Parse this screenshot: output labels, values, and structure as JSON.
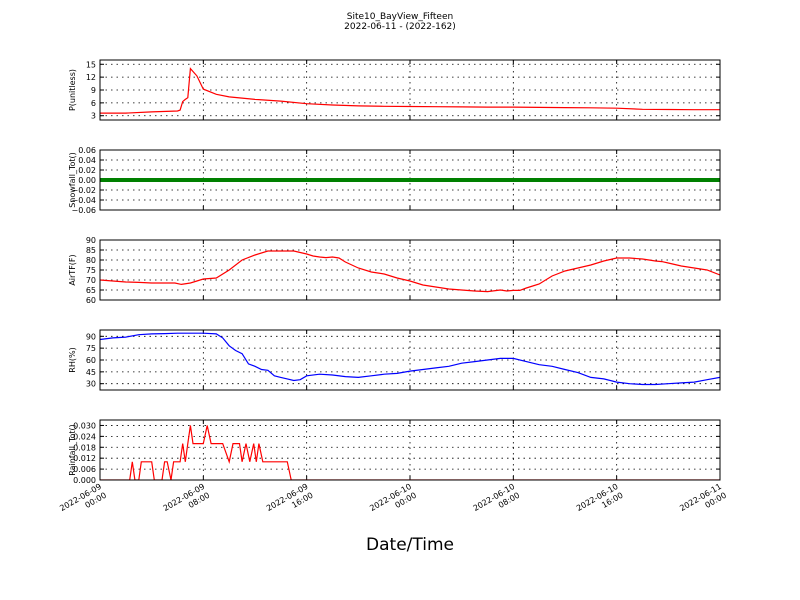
{
  "figure": {
    "title": "Site10_BayView_Fifteen",
    "subtitle": "2022-06-11 - (2022-162)",
    "xlabel": "Date/Time",
    "x_ticks": [
      {
        "line1": "2022-06-09",
        "line2": "00:00"
      },
      {
        "line1": "2022-06-09",
        "line2": "08:00"
      },
      {
        "line1": "2022-06-09",
        "line2": "16:00"
      },
      {
        "line1": "2022-06-10",
        "line2": "00:00"
      },
      {
        "line1": "2022-06-10",
        "line2": "08:00"
      },
      {
        "line1": "2022-06-10",
        "line2": "16:00"
      },
      {
        "line1": "2022-06-11",
        "line2": "00:00"
      }
    ]
  },
  "chart_data": [
    {
      "type": "line",
      "ylabel": "P(unitless)",
      "color": "#ff0000",
      "x_range_hours": [
        0,
        48
      ],
      "ylim": [
        2,
        16
      ],
      "yticks": [
        3,
        6,
        9,
        12,
        15
      ],
      "ytick_labels": [
        "3",
        "6",
        "9",
        "12",
        "15"
      ],
      "grid": true,
      "series": [
        {
          "x": [
            0,
            2,
            4,
            6,
            6.2,
            6.4,
            6.6,
            6.8,
            7,
            7.5,
            8,
            9,
            10,
            12,
            14,
            16,
            18,
            20,
            22,
            24,
            26,
            28,
            30,
            32,
            34,
            36,
            38,
            40,
            42,
            44,
            46,
            48
          ],
          "y": [
            3.6,
            3.6,
            3.9,
            4.1,
            4.3,
            6.3,
            6.8,
            7.2,
            14.0,
            12.3,
            9.2,
            8.0,
            7.4,
            6.8,
            6.4,
            5.8,
            5.5,
            5.3,
            5.2,
            5.15,
            5.1,
            5.05,
            5.0,
            5.0,
            4.95,
            4.9,
            4.85,
            4.75,
            4.5,
            4.45,
            4.4,
            4.4
          ]
        }
      ]
    },
    {
      "type": "line",
      "ylabel": "Snowfall_Tot()",
      "color": "#008000",
      "x_range_hours": [
        0,
        48
      ],
      "ylim": [
        -0.06,
        0.06
      ],
      "yticks": [
        -0.06,
        -0.04,
        -0.02,
        0.0,
        0.02,
        0.04,
        0.06
      ],
      "ytick_labels": [
        "−0.06",
        "−0.04",
        "−0.02",
        "0.00",
        "0.02",
        "0.04",
        "0.06"
      ],
      "grid": true,
      "series": [
        {
          "x": [
            0,
            48
          ],
          "y": [
            0,
            0
          ]
        }
      ]
    },
    {
      "type": "line",
      "ylabel": "AirTF(F)",
      "color": "#ff0000",
      "x_range_hours": [
        0,
        48
      ],
      "ylim": [
        60,
        90
      ],
      "yticks": [
        60,
        65,
        70,
        75,
        80,
        85,
        90
      ],
      "ytick_labels": [
        "60",
        "65",
        "70",
        "75",
        "80",
        "85",
        "90"
      ],
      "grid": true,
      "series": [
        {
          "x": [
            0,
            1,
            2,
            3,
            4,
            5,
            5.8,
            6.3,
            7,
            7.5,
            8,
            9,
            10,
            11,
            12,
            13,
            14,
            15,
            16,
            16.5,
            17,
            17.5,
            18,
            18.5,
            19,
            20,
            21,
            22,
            23,
            24,
            25,
            26,
            27,
            28,
            29,
            30,
            31,
            31.5,
            32,
            32.5,
            33,
            33.5,
            34,
            34.5,
            35,
            36,
            37,
            38,
            39,
            40,
            41,
            42,
            42.5,
            43,
            43.5,
            44,
            45,
            46,
            47,
            48
          ],
          "y": [
            70,
            69.5,
            69,
            68.8,
            68.5,
            68.5,
            68.5,
            67.8,
            68.5,
            69.5,
            70.5,
            71,
            75,
            80,
            82.5,
            84.5,
            84.5,
            84.5,
            83,
            82,
            81.5,
            81.2,
            81.5,
            81,
            79,
            76,
            74,
            73,
            71,
            69.5,
            67.5,
            66.5,
            65.5,
            65,
            64.5,
            64.2,
            65,
            64.5,
            64.8,
            64.8,
            66,
            67,
            68,
            70,
            72,
            74.5,
            76,
            77.5,
            79.5,
            81,
            81,
            80.5,
            80,
            79.5,
            79.2,
            78.5,
            77,
            76,
            75,
            72.5
          ]
        }
      ]
    },
    {
      "type": "line",
      "ylabel": "RH(%)",
      "color": "#0000ff",
      "x_range_hours": [
        0,
        48
      ],
      "ylim": [
        22,
        98
      ],
      "yticks": [
        30,
        45,
        60,
        75,
        90
      ],
      "ytick_labels": [
        "30",
        "45",
        "60",
        "75",
        "90"
      ],
      "grid": true,
      "series": [
        {
          "x": [
            0,
            1,
            2,
            3,
            4,
            5,
            6,
            7,
            8,
            9,
            9.5,
            10,
            10.5,
            11,
            11.5,
            12,
            12.5,
            13,
            13.5,
            14,
            14.5,
            15,
            15.5,
            16,
            17,
            18,
            19,
            20,
            21,
            22,
            23,
            24,
            25,
            26,
            27,
            28,
            29,
            30,
            31,
            32,
            33,
            34,
            35,
            36,
            37,
            38,
            39,
            40,
            41,
            42,
            43,
            44,
            45,
            46,
            47,
            48
          ],
          "y": [
            86,
            88,
            89,
            92,
            93,
            93.5,
            94,
            94,
            94,
            93,
            88,
            78,
            72,
            68,
            55,
            52,
            48,
            47,
            40,
            38,
            36,
            34,
            35,
            40,
            42,
            41,
            39,
            38,
            40,
            42,
            43,
            46,
            48,
            50,
            52,
            56,
            58,
            60,
            62,
            62,
            58,
            54,
            52,
            48,
            44,
            38,
            36,
            32,
            30,
            29,
            29,
            30,
            31,
            32,
            35,
            38
          ]
        }
      ]
    },
    {
      "type": "line",
      "ylabel": "Rainfall_Tot()",
      "color": "#ff0000",
      "x_range_hours": [
        0,
        48
      ],
      "ylim": [
        0.0,
        0.033
      ],
      "yticks": [
        0.0,
        0.006,
        0.012,
        0.018,
        0.024,
        0.03
      ],
      "ytick_labels": [
        "0.000",
        "0.006",
        "0.012",
        "0.018",
        "0.024",
        "0.030"
      ],
      "grid": true,
      "series": [
        {
          "x": [
            0,
            1,
            2.3,
            2.5,
            2.7,
            3.0,
            3.2,
            3.8,
            4.0,
            4.2,
            4.8,
            5.0,
            5.2,
            5.5,
            5.7,
            6.0,
            6.2,
            6.4,
            6.6,
            6.8,
            7.0,
            7.2,
            7.5,
            7.8,
            8.0,
            8.3,
            8.6,
            8.9,
            9.2,
            9.5,
            10.0,
            10.3,
            10.5,
            10.8,
            11.0,
            11.3,
            11.6,
            11.9,
            12.1,
            12.3,
            12.6,
            12.9,
            13.2,
            13.5,
            14.0,
            14.5,
            14.8,
            15.0,
            46,
            48
          ],
          "y": [
            0,
            0,
            0,
            0.01,
            0,
            0,
            0.01,
            0.01,
            0.01,
            0,
            0,
            0.01,
            0.01,
            0,
            0.01,
            0.01,
            0.01,
            0.02,
            0.01,
            0.02,
            0.03,
            0.02,
            0.02,
            0.02,
            0.02,
            0.03,
            0.02,
            0.02,
            0.02,
            0.02,
            0.01,
            0.02,
            0.02,
            0.02,
            0.01,
            0.02,
            0.01,
            0.02,
            0.01,
            0.02,
            0.01,
            0.01,
            0.01,
            0.01,
            0.01,
            0.01,
            0,
            0,
            0,
            0
          ]
        }
      ]
    }
  ]
}
